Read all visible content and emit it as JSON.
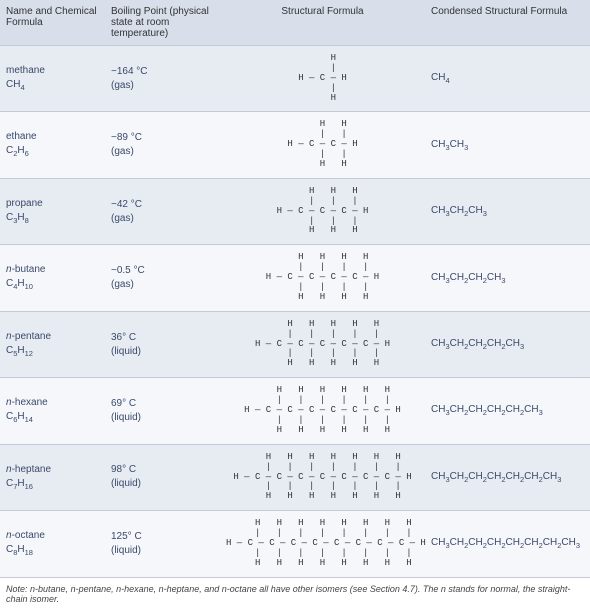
{
  "headers": {
    "col1": "Name and Chemical Formula",
    "col2": "Boiling Point (physical state at room temperature)",
    "col3": "Structural Formula",
    "col4": "Condensed Structural Formula"
  },
  "colors": {
    "header_bg": "#d8deea",
    "row_odd_bg": "#e7ebf2",
    "row_even_bg": "#f5f7fa",
    "text": "#3a4a6b",
    "border": "#c5cad6"
  },
  "rows": [
    {
      "name": "methane",
      "formula_html": "CH<sub>4</sub>",
      "bp": "−164 °C",
      "state": "(gas)",
      "carbons": 1,
      "condensed_html": "CH<sub>4</sub>"
    },
    {
      "name": "ethane",
      "formula_html": "C<sub>2</sub>H<sub>6</sub>",
      "bp": "−89 °C",
      "state": "(gas)",
      "carbons": 2,
      "condensed_html": "CH<sub>3</sub>CH<sub>3</sub>"
    },
    {
      "name": "propane",
      "formula_html": "C<sub>3</sub>H<sub>8</sub>",
      "bp": "−42 °C",
      "state": "(gas)",
      "carbons": 3,
      "condensed_html": "CH<sub>3</sub>CH<sub>2</sub>CH<sub>3</sub>"
    },
    {
      "name_html": "<i>n</i>-butane",
      "formula_html": "C<sub>4</sub>H<sub>10</sub>",
      "bp": "−0.5 °C",
      "state": "(gas)",
      "carbons": 4,
      "condensed_html": "CH<sub>3</sub>CH<sub>2</sub>CH<sub>2</sub>CH<sub>3</sub>"
    },
    {
      "name_html": "<i>n</i>-pentane",
      "formula_html": "C<sub>5</sub>H<sub>12</sub>",
      "bp": "36° C",
      "state": "(liquid)",
      "carbons": 5,
      "condensed_html": "CH<sub>3</sub>CH<sub>2</sub>CH<sub>2</sub>CH<sub>2</sub>CH<sub>3</sub>"
    },
    {
      "name_html": "<i>n</i>-hexane",
      "formula_html": "C<sub>6</sub>H<sub>14</sub>",
      "bp": "69° C",
      "state": "(liquid)",
      "carbons": 6,
      "condensed_html": "CH<sub>3</sub>CH<sub>2</sub>CH<sub>2</sub>CH<sub>2</sub>CH<sub>2</sub>CH<sub>3</sub>"
    },
    {
      "name_html": "<i>n</i>-heptane",
      "formula_html": "C<sub>7</sub>H<sub>16</sub>",
      "bp": "98° C",
      "state": "(liquid)",
      "carbons": 7,
      "condensed_html": "CH<sub>3</sub>CH<sub>2</sub>CH<sub>2</sub>CH<sub>2</sub>CH<sub>2</sub>CH<sub>2</sub>CH<sub>3</sub>"
    },
    {
      "name_html": "<i>n</i>-octane",
      "formula_html": "C<sub>8</sub>H<sub>18</sub>",
      "bp": "125° C",
      "state": "(liquid)",
      "carbons": 8,
      "condensed_html": "CH<sub>3</sub>CH<sub>2</sub>CH<sub>2</sub>CH<sub>2</sub>CH<sub>2</sub>CH<sub>2</sub>CH<sub>2</sub>CH<sub>3</sub>"
    }
  ],
  "note_html": "<i>Note: n</i>-butane, <i>n</i>-pentane, <i>n</i>-hexane, <i>n</i>-heptane, and <i>n</i>-octane all have other isomers (see Section 4.7). The <i>n</i> stands for normal, the straight-chain isomer."
}
